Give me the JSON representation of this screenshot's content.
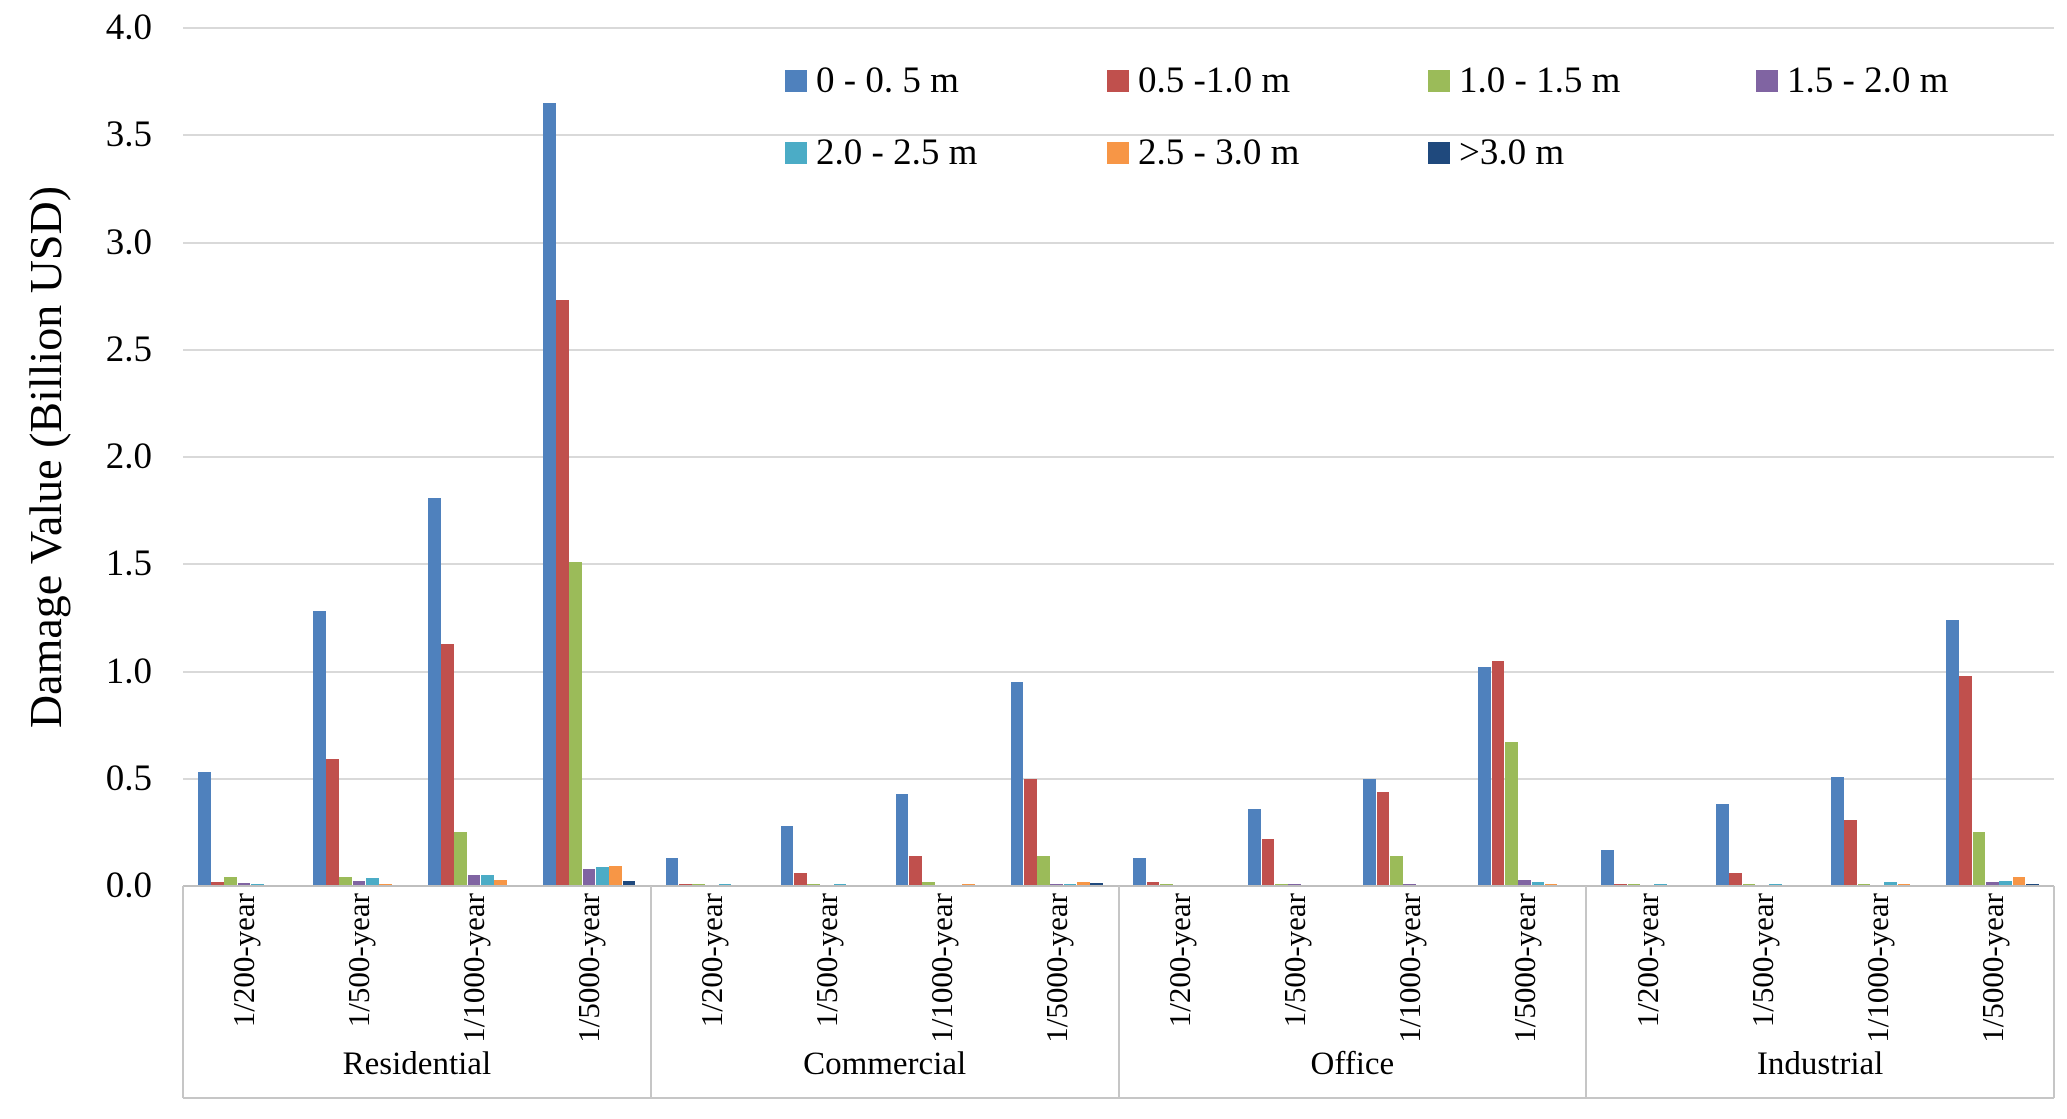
{
  "chart_data": {
    "type": "bar",
    "title": "",
    "ylabel": "Damage Value (Billion USD)",
    "xlabel": "",
    "ylim": [
      0.0,
      4.0
    ],
    "ytick_step": 0.5,
    "ytick_labels": [
      "0.0",
      "0.5",
      "1.0",
      "1.5",
      "2.0",
      "2.5",
      "3.0",
      "3.5",
      "4.0"
    ],
    "grid": "horizontal",
    "legend_position": "top-inside-two-rows",
    "categories": [
      "Residential",
      "Commercial",
      "Office",
      "Industrial"
    ],
    "subcategories": [
      "1/200-year",
      "1/500-year",
      "1/1000-year",
      "1/5000-year"
    ],
    "series": [
      {
        "name": "0 - 0. 5 m",
        "color": "#4F81BD",
        "values": [
          [
            0.53,
            1.28,
            1.81,
            3.65
          ],
          [
            0.13,
            0.28,
            0.43,
            0.95
          ],
          [
            0.13,
            0.36,
            0.5,
            1.02
          ],
          [
            0.17,
            0.38,
            0.51,
            1.24
          ]
        ]
      },
      {
        "name": "0.5 -1.0 m",
        "color": "#C0504D",
        "values": [
          [
            0.02,
            0.59,
            1.13,
            2.73
          ],
          [
            0.01,
            0.06,
            0.14,
            0.5
          ],
          [
            0.02,
            0.22,
            0.44,
            1.05
          ],
          [
            0.01,
            0.06,
            0.31,
            0.98
          ]
        ]
      },
      {
        "name": "1.0 - 1.5 m",
        "color": "#9BBB59",
        "values": [
          [
            0.04,
            0.04,
            0.25,
            1.51
          ],
          [
            0.01,
            0.01,
            0.02,
            0.14
          ],
          [
            0.01,
            0.01,
            0.14,
            0.67
          ],
          [
            0.01,
            0.01,
            0.01,
            0.25
          ]
        ]
      },
      {
        "name": "1.5 - 2.0 m",
        "color": "#8064A2",
        "values": [
          [
            0.015,
            0.025,
            0.05,
            0.08
          ],
          [
            0.005,
            0.005,
            0.005,
            0.01
          ],
          [
            0.005,
            0.01,
            0.01,
            0.03
          ],
          [
            0.005,
            0.005,
            0.005,
            0.02
          ]
        ]
      },
      {
        "name": "2.0 - 2.5 m",
        "color": "#4BACC6",
        "values": [
          [
            0.01,
            0.035,
            0.05,
            0.09
          ],
          [
            0.01,
            0.01,
            0.005,
            0.01
          ],
          [
            0.005,
            0.005,
            0.005,
            0.02
          ],
          [
            0.01,
            0.01,
            0.02,
            0.025
          ]
        ]
      },
      {
        "name": "2.5 - 3.0 m",
        "color": "#F79646",
        "values": [
          [
            0.005,
            0.01,
            0.03,
            0.095
          ],
          [
            0.005,
            0.005,
            0.01,
            0.02
          ],
          [
            0,
            0,
            0.005,
            0.01
          ],
          [
            0.005,
            0.005,
            0.01,
            0.04
          ]
        ]
      },
      {
        "name": ">3.0 m",
        "color": "#1F497D",
        "values": [
          [
            0,
            0,
            0.005,
            0.025
          ],
          [
            0,
            0,
            0.005,
            0.015
          ],
          [
            0,
            0,
            0,
            0.005
          ],
          [
            0,
            0,
            0.005,
            0.01
          ]
        ]
      }
    ],
    "legend_rows": [
      [
        0,
        1,
        2,
        3
      ],
      [
        4,
        5,
        6
      ]
    ]
  },
  "colors": {
    "gridline": "#D9D9D9",
    "axis_line": "#BFBFBF",
    "text": "#000000",
    "background": "#FFFFFF"
  }
}
